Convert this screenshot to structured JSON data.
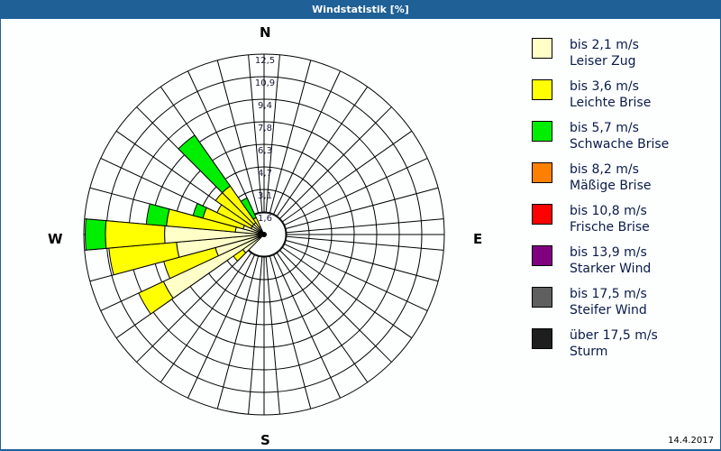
{
  "window": {
    "title": "Windstatistik [%]"
  },
  "compass": {
    "n": "N",
    "e": "E",
    "s": "S",
    "w": "W"
  },
  "date": "14.4.2017",
  "legend": [
    {
      "speed": "bis 2,1 m/s",
      "name": "Leiser Zug",
      "color": "#ffffc8"
    },
    {
      "speed": "bis 3,6 m/s",
      "name": "Leichte Brise",
      "color": "#ffff00"
    },
    {
      "speed": "bis 5,7 m/s",
      "name": "Schwache Brise",
      "color": "#00ee00"
    },
    {
      "speed": "bis 8,2 m/s",
      "name": "Mäßige Brise",
      "color": "#ff8000"
    },
    {
      "speed": "bis 10,8 m/s",
      "name": "Frische Brise",
      "color": "#ff0000"
    },
    {
      "speed": "bis 13,9 m/s",
      "name": "Starker Wind",
      "color": "#800080"
    },
    {
      "speed": "bis 17,5 m/s",
      "name": "Steifer Wind",
      "color": "#5f5f5f"
    },
    {
      "speed": "über 17,5 m/s",
      "name": "Sturm",
      "color": "#1e1e1e"
    }
  ],
  "chart_data": {
    "type": "wind-rose",
    "title": "Windstatistik [%]",
    "ring_labels": [
      "1,6",
      "3,1",
      "4,7",
      "6,3",
      "7,8",
      "9,4",
      "10,9",
      "12,5"
    ],
    "rmax": 12.5,
    "sector_width_deg": 10,
    "series_names": [
      "Leiser Zug",
      "Leichte Brise",
      "Schwache Brise"
    ],
    "sectors": [
      {
        "dir": 230,
        "cumulative": [
          1.8,
          2.6,
          2.6
        ]
      },
      {
        "dir": 240,
        "cumulative": [
          7.7,
          9.6,
          9.6
        ]
      },
      {
        "dir": 250,
        "cumulative": [
          3.5,
          7.2,
          7.2
        ]
      },
      {
        "dir": 260,
        "cumulative": [
          6.1,
          10.8,
          10.8
        ]
      },
      {
        "dir": 270,
        "cumulative": [
          6.9,
          11.0,
          12.4
        ]
      },
      {
        "dir": 280,
        "cumulative": [
          2.0,
          6.8,
          8.2
        ]
      },
      {
        "dir": 290,
        "cumulative": [
          1.5,
          4.4,
          5.1
        ]
      },
      {
        "dir": 300,
        "cumulative": [
          1.0,
          3.6,
          3.6
        ]
      },
      {
        "dir": 310,
        "cumulative": [
          1.0,
          4.1,
          4.1
        ]
      },
      {
        "dir": 320,
        "cumulative": [
          1.0,
          4.1,
          8.4
        ]
      },
      {
        "dir": 330,
        "cumulative": [
          0.6,
          1.3,
          2.8
        ]
      }
    ]
  }
}
